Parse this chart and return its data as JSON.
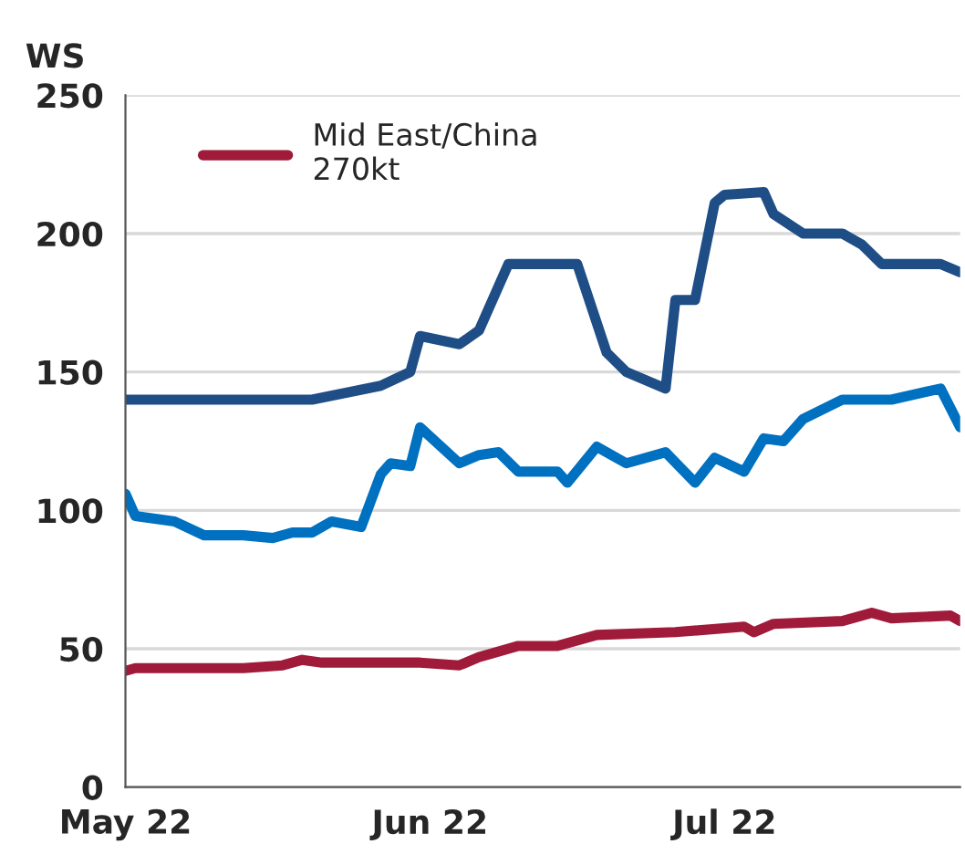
{
  "chart_data": {
    "type": "line",
    "ylabel": "WS",
    "x": [
      "2022-05-01",
      "2022-05-20",
      "2022-05-27",
      "2022-05-30",
      "2022-05-31",
      "2022-06-04",
      "2022-06-06",
      "2022-06-09",
      "2022-06-16",
      "2022-06-19",
      "2022-06-21",
      "2022-06-25",
      "2022-06-26",
      "2022-06-28",
      "2022-06-30",
      "2022-07-01",
      "2022-07-05",
      "2022-07-06",
      "2022-07-09",
      "2022-07-13",
      "2022-07-15",
      "2022-07-17",
      "2022-07-23",
      "2022-07-25"
    ],
    "series": [
      {
        "color": "#1f4e87",
        "values": [
          140,
          140,
          145,
          150,
          163,
          160,
          165,
          189,
          189,
          157,
          150,
          144,
          176,
          176,
          211,
          214,
          215,
          207,
          200,
          200,
          196,
          189,
          189,
          186
        ]
      },
      {
        "color": "#0070c0",
        "x": [
          "2022-05-01",
          "2022-05-02",
          "2022-05-06",
          "2022-05-09",
          "2022-05-13",
          "2022-05-16",
          "2022-05-18",
          "2022-05-20",
          "2022-05-22",
          "2022-05-25",
          "2022-05-27",
          "2022-05-28",
          "2022-05-30",
          "2022-05-31",
          "2022-06-04",
          "2022-06-06",
          "2022-06-08",
          "2022-06-10",
          "2022-06-14",
          "2022-06-15",
          "2022-06-18",
          "2022-06-21",
          "2022-06-25",
          "2022-06-28",
          "2022-06-30",
          "2022-07-03",
          "2022-07-05",
          "2022-07-07",
          "2022-07-09",
          "2022-07-13",
          "2022-07-18",
          "2022-07-23",
          "2022-07-25"
        ],
        "values": [
          106,
          98,
          96,
          91,
          91,
          90,
          92,
          92,
          96,
          94,
          113,
          117,
          116,
          130,
          117,
          120,
          121,
          114,
          114,
          110,
          123,
          117,
          121,
          110,
          119,
          114,
          126,
          125,
          133,
          140,
          140,
          144,
          130
        ]
      },
      {
        "name": "Mid East/China\n270kt",
        "color": "#a01a3a",
        "x": [
          "2022-05-01",
          "2022-05-02",
          "2022-05-13",
          "2022-05-17",
          "2022-05-19",
          "2022-05-21",
          "2022-05-31",
          "2022-06-04",
          "2022-06-06",
          "2022-06-07",
          "2022-06-10",
          "2022-06-14",
          "2022-06-18",
          "2022-06-26",
          "2022-07-03",
          "2022-07-04",
          "2022-07-06",
          "2022-07-13",
          "2022-07-16",
          "2022-07-18",
          "2022-07-24",
          "2022-07-25"
        ],
        "values": [
          42,
          43,
          43,
          44,
          46,
          45,
          45,
          44,
          47,
          48,
          51,
          51,
          55,
          56,
          58,
          56,
          59,
          60,
          63,
          61,
          62,
          60
        ]
      }
    ],
    "xlim": [
      "2022-05-01",
      "2022-07-25"
    ],
    "xticks": [
      {
        "value": "2022-05-01",
        "label": "May 22"
      },
      {
        "value": "2022-06-01",
        "label": "Jun 22"
      },
      {
        "value": "2022-07-01",
        "label": "Jul 22"
      }
    ],
    "ylim": [
      0,
      250
    ],
    "yticks": [
      0,
      50,
      100,
      150,
      200,
      250
    ],
    "grid": "y",
    "legend": "top left",
    "line_style": "solid",
    "marker": "none"
  }
}
